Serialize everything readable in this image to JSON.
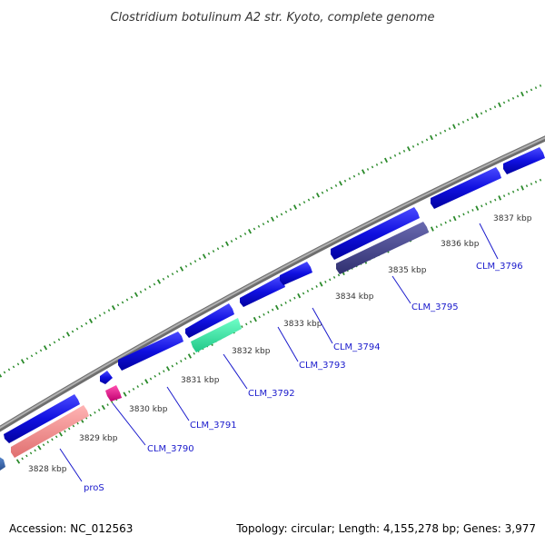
{
  "title": "Clostridium botulinum A2 str. Kyoto, complete genome",
  "footer": {
    "accession": "Accession: NC_012563",
    "summary": "Topology: circular; Length: 4,155,278 bp; Genes: 3,977"
  },
  "ruler_labels": [
    "3828 kbp",
    "3829 kbp",
    "3830 kbp",
    "3831 kbp",
    "3832 kbp",
    "3833 kbp",
    "3834 kbp",
    "3835 kbp",
    "3836 kbp",
    "3837 kbp"
  ],
  "gene_labels": [
    "proS",
    "CLM_3790",
    "CLM_3791",
    "CLM_3792",
    "CLM_3793",
    "CLM_3794",
    "CLM_3795",
    "CLM_3796"
  ],
  "colors": {
    "backbone": "#8c8c8c",
    "gene_blue": "#1010e0",
    "gene_pink": "#f08a8a",
    "gene_magenta": "#e0108a",
    "gene_green": "#30e8a0",
    "gene_slate": "#48488a",
    "gene_steel": "#3a6ab0",
    "tick_green": "#2a8a2a",
    "label_blue": "#1a1acc"
  }
}
